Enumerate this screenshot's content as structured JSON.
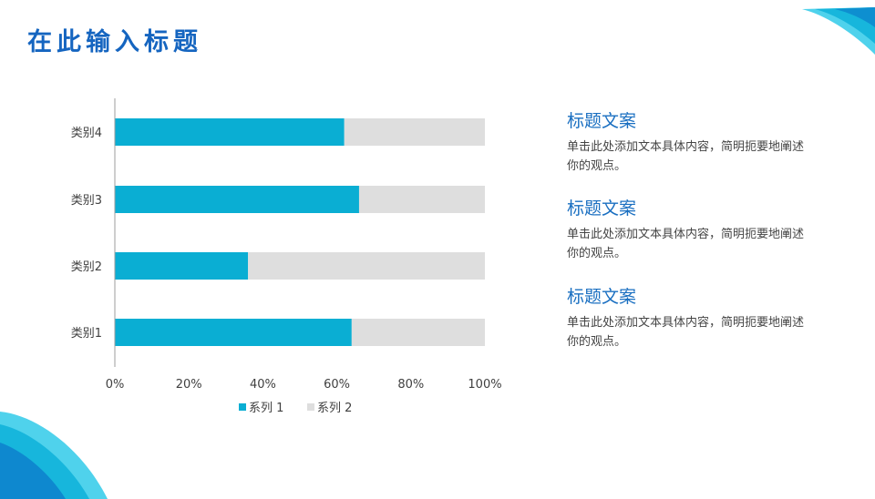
{
  "page": {
    "title": "在此输入标题"
  },
  "colors": {
    "series1": "#0aaed3",
    "series2": "#dedede",
    "title": "#1565c0",
    "heading": "#1a6fc1",
    "axis": "#9e9e9e"
  },
  "chart_data": {
    "type": "bar",
    "orientation": "horizontal",
    "stacked": "percent",
    "categories": [
      "类别1",
      "类别2",
      "类别3",
      "类别4"
    ],
    "series": [
      {
        "name": "系列 1",
        "values": [
          64,
          36,
          66,
          62
        ]
      },
      {
        "name": "系列 2",
        "values": [
          36,
          64,
          34,
          38
        ]
      }
    ],
    "xlim": [
      0,
      100
    ],
    "xticks": [
      "0%",
      "20%",
      "40%",
      "60%",
      "80%",
      "100%"
    ],
    "grid": false,
    "legend": "bottom"
  },
  "sidebar": {
    "items": [
      {
        "heading": "标题文案",
        "text": "单击此处添加文本具体内容，简明扼要地阐述你的观点。"
      },
      {
        "heading": "标题文案",
        "text": "单击此处添加文本具体内容，简明扼要地阐述你的观点。"
      },
      {
        "heading": "标题文案",
        "text": "单击此处添加文本具体内容，简明扼要地阐述你的观点。"
      }
    ]
  }
}
